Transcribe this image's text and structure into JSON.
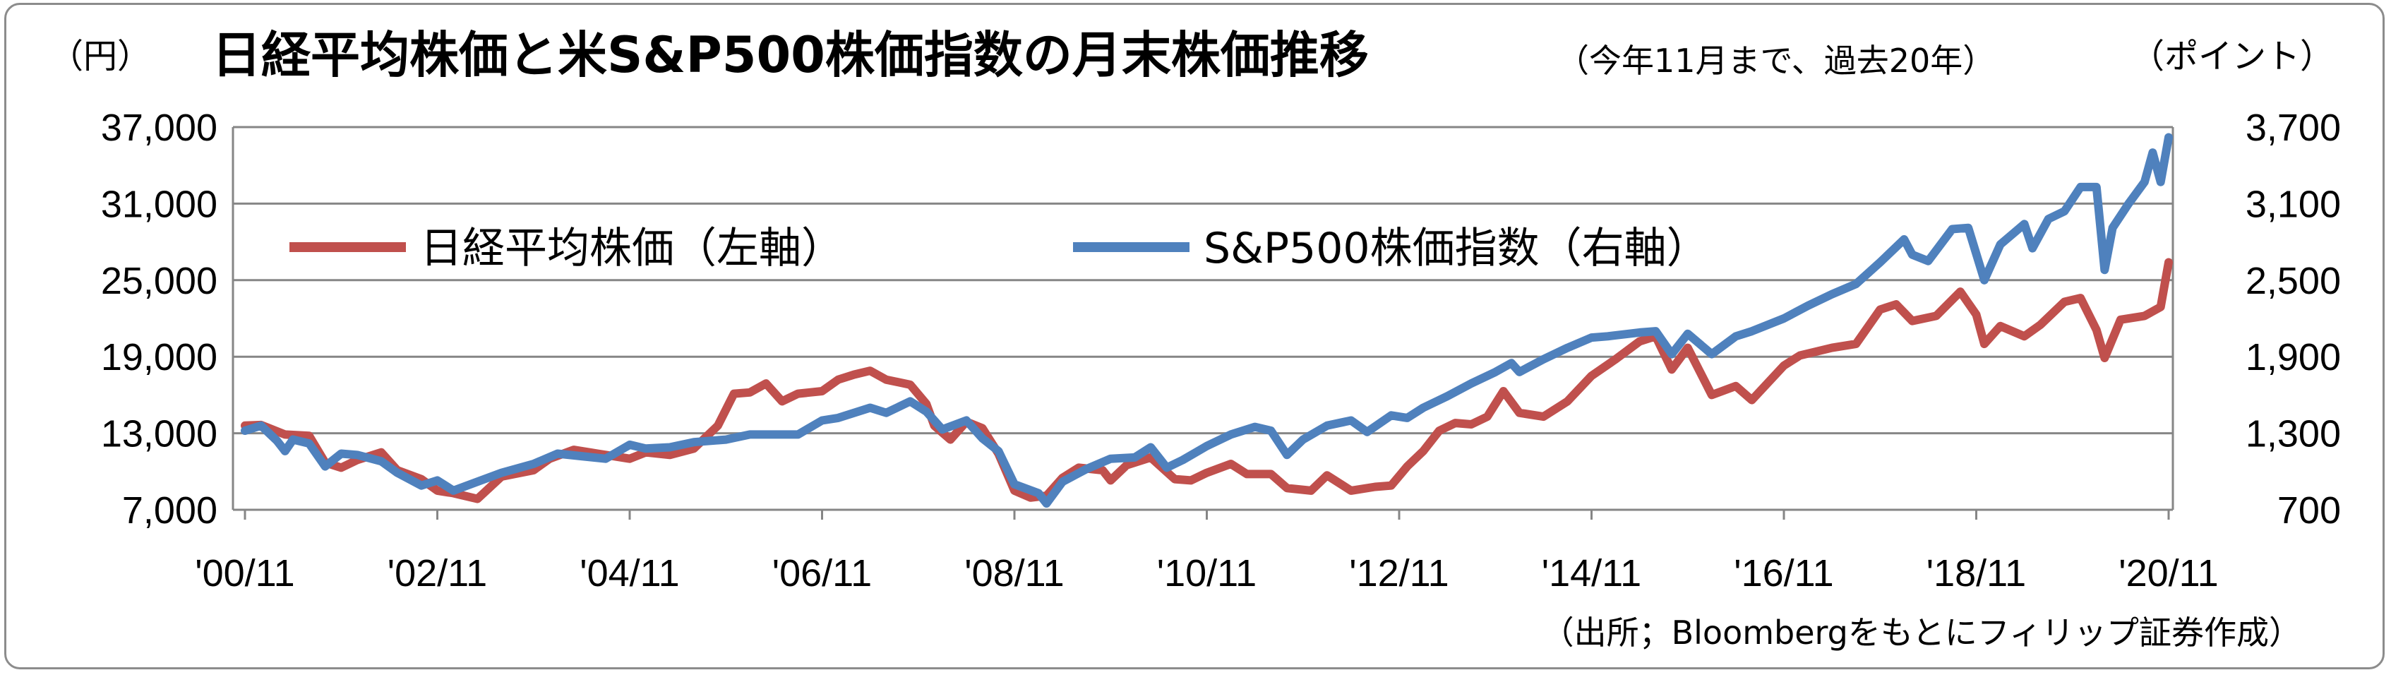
{
  "chart_data": {
    "type": "line",
    "title": "日経平均株価と米S&P500株価指数の月末株価推移",
    "subtitle": "（今年11月まで、過去20年）",
    "left_unit": "（円）",
    "right_unit": "（ポイント）",
    "source": "（出所；Bloombergをもとにフィリップ証券作成）",
    "x_ticks": [
      "'00/11",
      "'02/11",
      "'04/11",
      "'06/11",
      "'08/11",
      "'10/11",
      "'12/11",
      "'14/11",
      "'16/11",
      "'18/11",
      "'20/11"
    ],
    "x_range": [
      2000.833,
      2020.833
    ],
    "left_axis": {
      "ylim": [
        7000,
        37000
      ],
      "ticks": [
        "7,000",
        "13,000",
        "19,000",
        "25,000",
        "31,000",
        "37,000"
      ],
      "tick_values": [
        7000,
        13000,
        19000,
        25000,
        31000,
        37000
      ]
    },
    "right_axis": {
      "ylim": [
        700,
        3700
      ],
      "ticks": [
        "700",
        "1,300",
        "1,900",
        "2,500",
        "3,100",
        "3,700"
      ],
      "tick_values": [
        700,
        1300,
        1900,
        2500,
        3100,
        3700
      ]
    },
    "grid": true,
    "legend_position": "top-left",
    "series": [
      {
        "name": "日経平均株価（左軸）",
        "axis": "left",
        "color": "#c0504d",
        "points": [
          [
            2000.833,
            13600
          ],
          [
            2001.0,
            13650
          ],
          [
            2001.25,
            12900
          ],
          [
            2001.5,
            12800
          ],
          [
            2001.667,
            10700
          ],
          [
            2001.833,
            10300
          ],
          [
            2002.0,
            10900
          ],
          [
            2002.25,
            11500
          ],
          [
            2002.417,
            10100
          ],
          [
            2002.667,
            9400
          ],
          [
            2002.833,
            8500
          ],
          [
            2003.0,
            8300
          ],
          [
            2003.25,
            7850
          ],
          [
            2003.5,
            9600
          ],
          [
            2003.833,
            10100
          ],
          [
            2004.0,
            11000
          ],
          [
            2004.25,
            11700
          ],
          [
            2004.5,
            11400
          ],
          [
            2004.833,
            11000
          ],
          [
            2005.0,
            11500
          ],
          [
            2005.25,
            11300
          ],
          [
            2005.5,
            11800
          ],
          [
            2005.75,
            13600
          ],
          [
            2005.917,
            16100
          ],
          [
            2006.083,
            16200
          ],
          [
            2006.25,
            16900
          ],
          [
            2006.417,
            15500
          ],
          [
            2006.583,
            16100
          ],
          [
            2006.833,
            16300
          ],
          [
            2007.0,
            17200
          ],
          [
            2007.167,
            17600
          ],
          [
            2007.333,
            17900
          ],
          [
            2007.5,
            17200
          ],
          [
            2007.75,
            16800
          ],
          [
            2007.917,
            15300
          ],
          [
            2008.0,
            13600
          ],
          [
            2008.167,
            12500
          ],
          [
            2008.333,
            13900
          ],
          [
            2008.5,
            13400
          ],
          [
            2008.667,
            11400
          ],
          [
            2008.833,
            8500
          ],
          [
            2009.0,
            7950
          ],
          [
            2009.167,
            8100
          ],
          [
            2009.333,
            9500
          ],
          [
            2009.5,
            10300
          ],
          [
            2009.75,
            10100
          ],
          [
            2009.833,
            9300
          ],
          [
            2010.0,
            10500
          ],
          [
            2010.25,
            11100
          ],
          [
            2010.5,
            9400
          ],
          [
            2010.667,
            9300
          ],
          [
            2010.833,
            9900
          ],
          [
            2011.083,
            10600
          ],
          [
            2011.25,
            9800
          ],
          [
            2011.5,
            9800
          ],
          [
            2011.667,
            8700
          ],
          [
            2011.917,
            8500
          ],
          [
            2012.083,
            9700
          ],
          [
            2012.333,
            8500
          ],
          [
            2012.583,
            8800
          ],
          [
            2012.75,
            8900
          ],
          [
            2012.917,
            10400
          ],
          [
            2013.083,
            11600
          ],
          [
            2013.25,
            13200
          ],
          [
            2013.417,
            13800
          ],
          [
            2013.583,
            13700
          ],
          [
            2013.75,
            14300
          ],
          [
            2013.917,
            16300
          ],
          [
            2014.083,
            14600
          ],
          [
            2014.333,
            14300
          ],
          [
            2014.583,
            15500
          ],
          [
            2014.833,
            17500
          ],
          [
            2015.083,
            18800
          ],
          [
            2015.333,
            20200
          ],
          [
            2015.5,
            20600
          ],
          [
            2015.667,
            18000
          ],
          [
            2015.833,
            19700
          ],
          [
            2016.083,
            16000
          ],
          [
            2016.333,
            16700
          ],
          [
            2016.5,
            15600
          ],
          [
            2016.833,
            18300
          ],
          [
            2017.0,
            19100
          ],
          [
            2017.333,
            19700
          ],
          [
            2017.583,
            20000
          ],
          [
            2017.833,
            22700
          ],
          [
            2018.0,
            23100
          ],
          [
            2018.167,
            21800
          ],
          [
            2018.417,
            22200
          ],
          [
            2018.667,
            24100
          ],
          [
            2018.833,
            22300
          ],
          [
            2018.917,
            20000
          ],
          [
            2019.083,
            21400
          ],
          [
            2019.333,
            20600
          ],
          [
            2019.5,
            21500
          ],
          [
            2019.75,
            23300
          ],
          [
            2019.917,
            23600
          ],
          [
            2020.083,
            21100
          ],
          [
            2020.167,
            18900
          ],
          [
            2020.333,
            21900
          ],
          [
            2020.583,
            22200
          ],
          [
            2020.75,
            22900
          ],
          [
            2020.833,
            26400
          ]
        ]
      },
      {
        "name": "S&P500株価指数（右軸）",
        "axis": "right",
        "color": "#4f81bd",
        "points": [
          [
            2000.833,
            1320
          ],
          [
            2001.0,
            1360
          ],
          [
            2001.167,
            1240
          ],
          [
            2001.25,
            1160
          ],
          [
            2001.333,
            1250
          ],
          [
            2001.5,
            1220
          ],
          [
            2001.667,
            1040
          ],
          [
            2001.833,
            1140
          ],
          [
            2002.0,
            1130
          ],
          [
            2002.25,
            1080
          ],
          [
            2002.417,
            990
          ],
          [
            2002.667,
            890
          ],
          [
            2002.833,
            930
          ],
          [
            2003.0,
            850
          ],
          [
            2003.25,
            920
          ],
          [
            2003.5,
            990
          ],
          [
            2003.833,
            1060
          ],
          [
            2004.083,
            1140
          ],
          [
            2004.333,
            1120
          ],
          [
            2004.583,
            1100
          ],
          [
            2004.833,
            1210
          ],
          [
            2005.0,
            1180
          ],
          [
            2005.25,
            1190
          ],
          [
            2005.5,
            1230
          ],
          [
            2005.833,
            1250
          ],
          [
            2006.083,
            1290
          ],
          [
            2006.25,
            1290
          ],
          [
            2006.583,
            1290
          ],
          [
            2006.833,
            1400
          ],
          [
            2007.0,
            1420
          ],
          [
            2007.333,
            1500
          ],
          [
            2007.5,
            1460
          ],
          [
            2007.75,
            1550
          ],
          [
            2007.917,
            1470
          ],
          [
            2008.083,
            1330
          ],
          [
            2008.333,
            1400
          ],
          [
            2008.5,
            1260
          ],
          [
            2008.667,
            1160
          ],
          [
            2008.833,
            900
          ],
          [
            2009.083,
            830
          ],
          [
            2009.167,
            750
          ],
          [
            2009.333,
            920
          ],
          [
            2009.583,
            1020
          ],
          [
            2009.833,
            1100
          ],
          [
            2010.083,
            1110
          ],
          [
            2010.25,
            1190
          ],
          [
            2010.417,
            1030
          ],
          [
            2010.583,
            1090
          ],
          [
            2010.833,
            1200
          ],
          [
            2011.083,
            1290
          ],
          [
            2011.333,
            1350
          ],
          [
            2011.5,
            1320
          ],
          [
            2011.667,
            1130
          ],
          [
            2011.833,
            1250
          ],
          [
            2012.083,
            1360
          ],
          [
            2012.333,
            1400
          ],
          [
            2012.5,
            1310
          ],
          [
            2012.75,
            1440
          ],
          [
            2012.917,
            1420
          ],
          [
            2013.083,
            1500
          ],
          [
            2013.333,
            1590
          ],
          [
            2013.583,
            1690
          ],
          [
            2013.833,
            1780
          ],
          [
            2014.0,
            1850
          ],
          [
            2014.083,
            1780
          ],
          [
            2014.333,
            1880
          ],
          [
            2014.583,
            1970
          ],
          [
            2014.833,
            2050
          ],
          [
            2015.0,
            2060
          ],
          [
            2015.333,
            2090
          ],
          [
            2015.5,
            2100
          ],
          [
            2015.667,
            1920
          ],
          [
            2015.833,
            2080
          ],
          [
            2016.083,
            1920
          ],
          [
            2016.333,
            2060
          ],
          [
            2016.5,
            2100
          ],
          [
            2016.833,
            2200
          ],
          [
            2017.083,
            2300
          ],
          [
            2017.333,
            2390
          ],
          [
            2017.583,
            2470
          ],
          [
            2017.833,
            2640
          ],
          [
            2018.083,
            2820
          ],
          [
            2018.167,
            2700
          ],
          [
            2018.333,
            2650
          ],
          [
            2018.583,
            2900
          ],
          [
            2018.75,
            2910
          ],
          [
            2018.917,
            2500
          ],
          [
            2019.083,
            2780
          ],
          [
            2019.333,
            2940
          ],
          [
            2019.417,
            2750
          ],
          [
            2019.583,
            2980
          ],
          [
            2019.75,
            3040
          ],
          [
            2019.917,
            3230
          ],
          [
            2020.083,
            3230
          ],
          [
            2020.167,
            2580
          ],
          [
            2020.25,
            2910
          ],
          [
            2020.417,
            3100
          ],
          [
            2020.583,
            3270
          ],
          [
            2020.667,
            3500
          ],
          [
            2020.75,
            3270
          ],
          [
            2020.833,
            3620
          ]
        ]
      }
    ]
  }
}
